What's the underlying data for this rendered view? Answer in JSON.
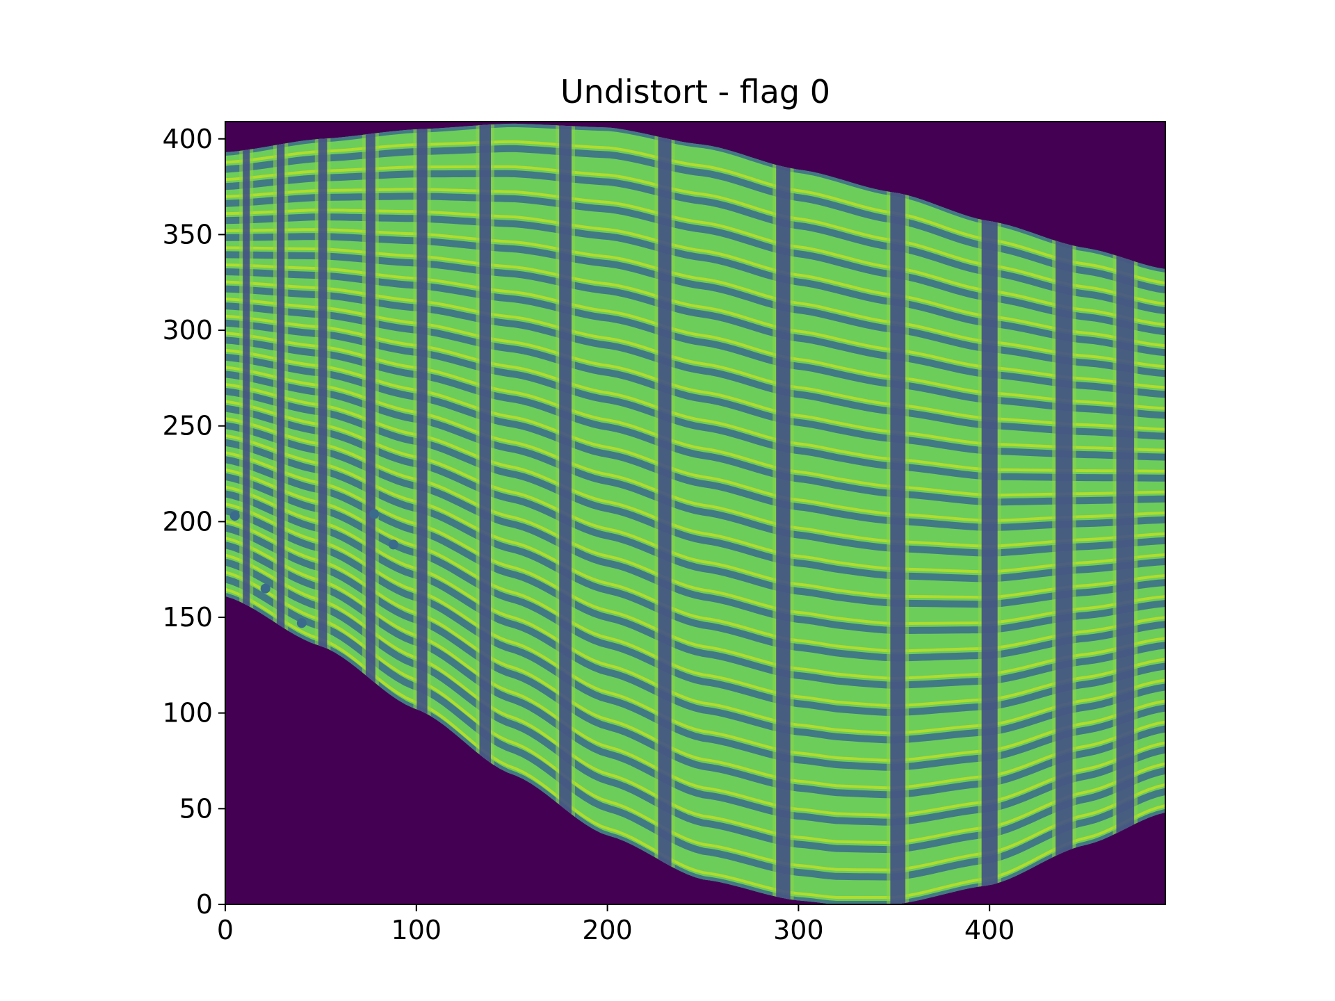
{
  "chart_data": {
    "type": "heatmap",
    "title": "Undistort - flag 0",
    "xlabel": "",
    "ylabel": "",
    "xlim": [
      0,
      492
    ],
    "ylim": [
      0,
      409
    ],
    "x_ticks": [
      0,
      100,
      200,
      300,
      400
    ],
    "y_ticks": [
      0,
      50,
      100,
      150,
      200,
      250,
      300,
      350,
      400
    ],
    "grid": false,
    "colormap": "viridis",
    "colors": {
      "background": "#440154",
      "field": "#6ccd5a",
      "band_light": "#8fd744",
      "band_dark": "#3a6b8c",
      "band_darkest": "#3e4a89",
      "highlight": "#c8e020"
    },
    "region": {
      "top_edge": [
        [
          0,
          393
        ],
        [
          50,
          400
        ],
        [
          100,
          405
        ],
        [
          150,
          408
        ],
        [
          200,
          406
        ],
        [
          250,
          397
        ],
        [
          300,
          384
        ],
        [
          350,
          372
        ],
        [
          400,
          357
        ],
        [
          450,
          343
        ],
        [
          492,
          332
        ]
      ],
      "bottom_edge": [
        [
          0,
          161
        ],
        [
          50,
          135
        ],
        [
          100,
          102
        ],
        [
          150,
          68
        ],
        [
          200,
          36
        ],
        [
          250,
          13
        ],
        [
          300,
          2
        ],
        [
          320,
          0
        ],
        [
          350,
          0
        ],
        [
          400,
          10
        ],
        [
          450,
          31
        ],
        [
          492,
          48
        ]
      ]
    },
    "vertical_bands_x": [
      11,
      29,
      51,
      76,
      103,
      136,
      178,
      230,
      292,
      352,
      400,
      439,
      471
    ],
    "horizontal_bands_count": 26,
    "spots": [
      [
        5,
        203
      ],
      [
        21,
        165
      ],
      [
        40,
        147
      ],
      [
        78,
        204
      ],
      [
        88,
        188
      ]
    ]
  }
}
